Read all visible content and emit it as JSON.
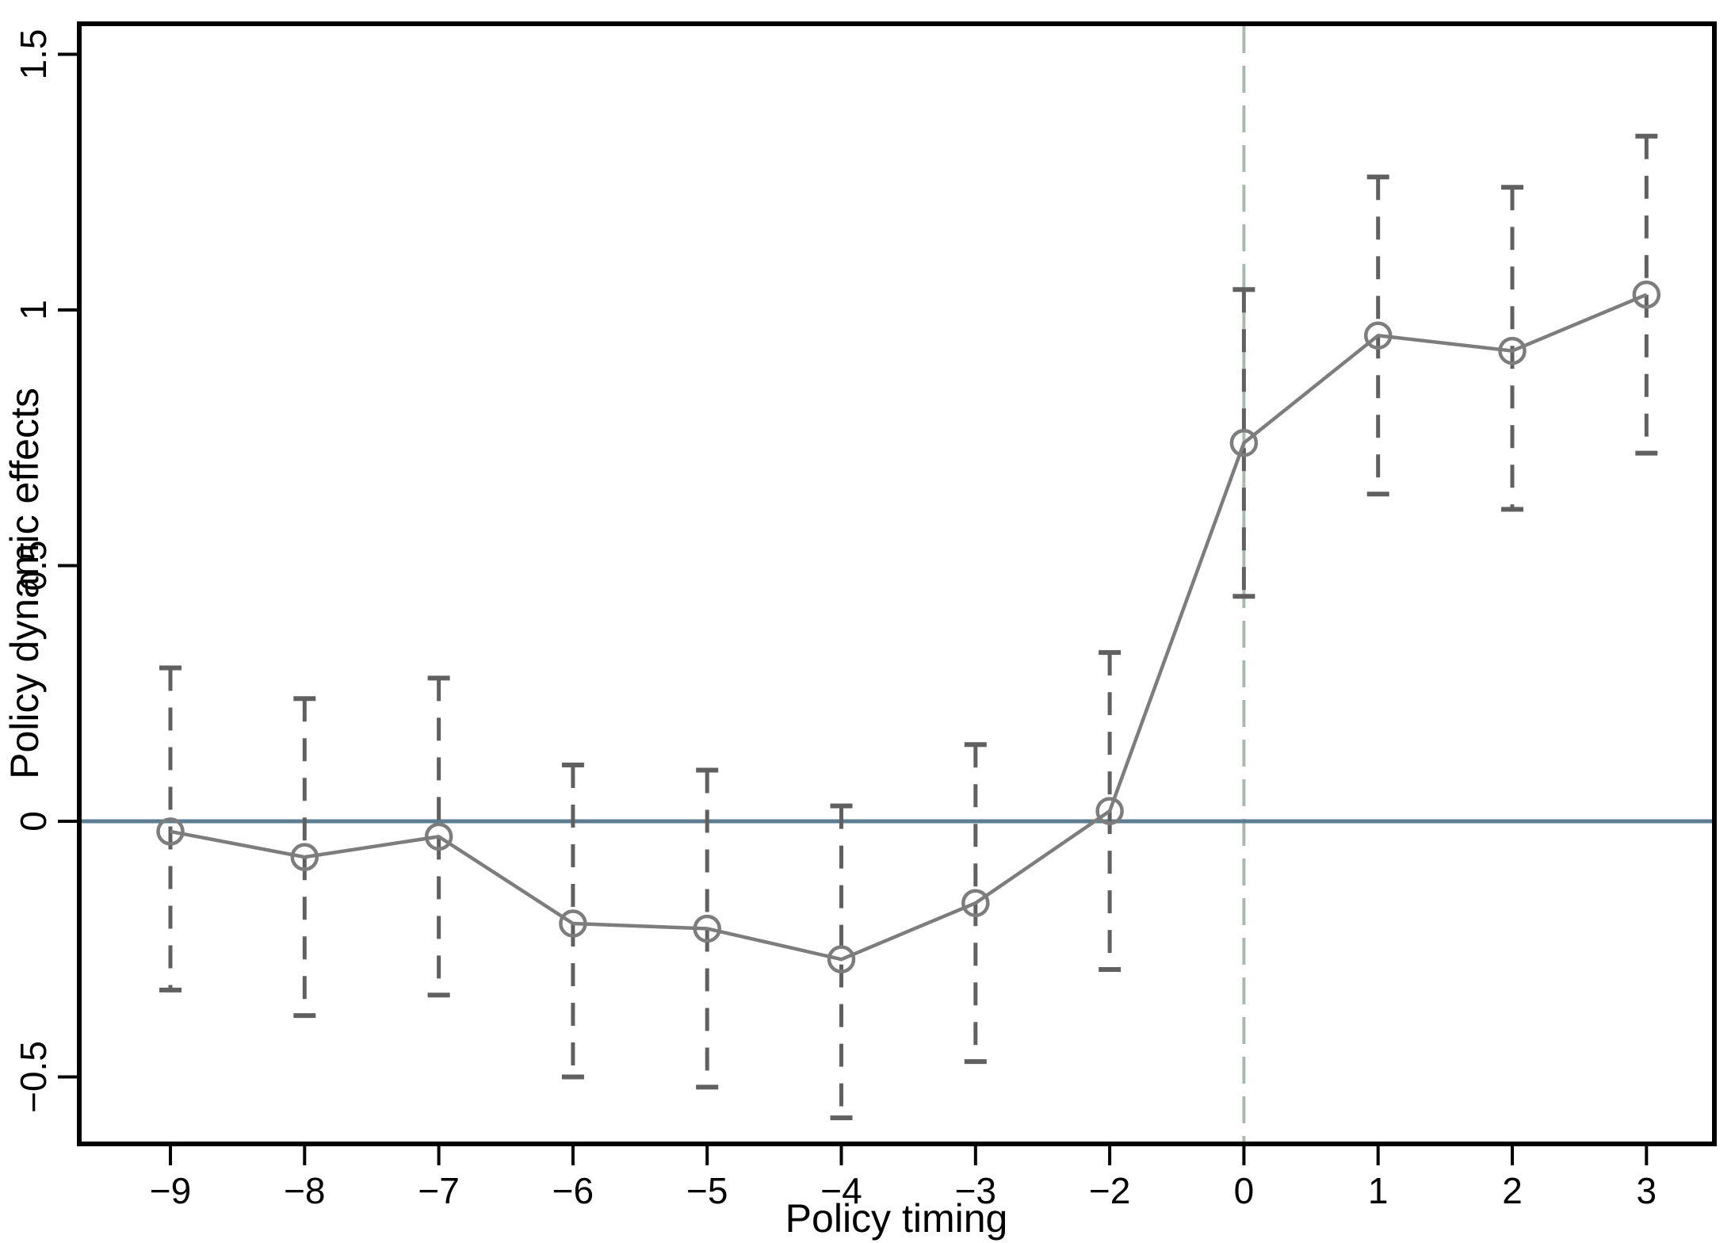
{
  "chart_data": {
    "type": "line",
    "title": "",
    "xlabel": "Policy timing",
    "ylabel": "Policy dynamic effects",
    "x_tick_labels": [
      "−9",
      "−8",
      "−7",
      "−6",
      "−5",
      "−4",
      "−3",
      "−2",
      "0",
      "1",
      "2",
      "3"
    ],
    "x_values": [
      -9,
      -8,
      -7,
      -6,
      -5,
      -4,
      -3,
      -2,
      0,
      1,
      2,
      3
    ],
    "y_ticks": [
      1.5,
      1,
      0.5,
      0,
      -0.5
    ],
    "y_tick_labels": [
      "1.5",
      "1",
      "0.5",
      "0",
      "−0.5"
    ],
    "ylim": [
      -0.63,
      1.56
    ],
    "grid": "off",
    "legend_position": "none",
    "zero_line_at": 0,
    "event_line_at_label": "0",
    "series": [
      {
        "name": "Policy dynamic effects",
        "marker": "open-circle",
        "line_style": "solid",
        "ci_style": "dashed-capped",
        "estimates": [
          -0.02,
          -0.07,
          -0.03,
          -0.2,
          -0.21,
          -0.27,
          -0.16,
          0.02,
          0.74,
          0.95,
          0.92,
          1.03
        ],
        "ci_lower": [
          -0.33,
          -0.38,
          -0.34,
          -0.5,
          -0.52,
          -0.58,
          -0.47,
          -0.29,
          0.44,
          0.64,
          0.61,
          0.72
        ],
        "ci_upper": [
          0.3,
          0.24,
          0.28,
          0.11,
          0.1,
          0.03,
          0.15,
          0.33,
          1.04,
          1.26,
          1.24,
          1.34
        ]
      }
    ],
    "colors": {
      "series": "#7d7d7d",
      "error_bar": "#606060",
      "zero_line": "#5d7e90",
      "event_line": "#a9bab1",
      "axis": "#000000",
      "background": "#ffffff"
    }
  }
}
